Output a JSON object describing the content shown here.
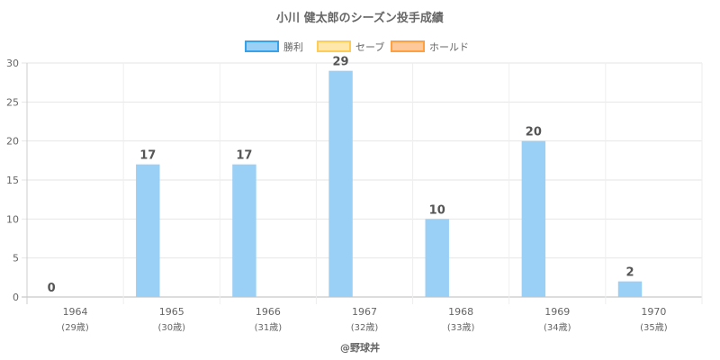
{
  "chart_data": {
    "type": "bar",
    "title": "小川 健太郎のシーズン投手成績",
    "categories": [
      "1964",
      "1965",
      "1966",
      "1967",
      "1968",
      "1969",
      "1970"
    ],
    "category_sublabels": [
      "(29歳)",
      "(30歳)",
      "(31歳)",
      "(32歳)",
      "(33歳)",
      "(34歳)",
      "(35歳)"
    ],
    "series": [
      {
        "name": "勝利",
        "values": [
          0,
          17,
          17,
          29,
          10,
          20,
          2
        ],
        "color": "#9ad0f5",
        "border": "#36a2eb"
      },
      {
        "name": "セーブ",
        "values": [
          0,
          0,
          0,
          0,
          0,
          0,
          0
        ],
        "color": "#ffe6aa",
        "border": "#ffcd56"
      },
      {
        "name": "ホールド",
        "values": [
          0,
          0,
          0,
          0,
          0,
          0,
          0
        ],
        "color": "#ffc89a",
        "border": "#ff9f40"
      }
    ],
    "data_labels": [
      "0",
      "17",
      "17",
      "29",
      "10",
      "20",
      "2"
    ],
    "ylim": [
      0,
      30
    ],
    "yticks": [
      0,
      5,
      10,
      15,
      20,
      25,
      30
    ],
    "grid": true,
    "legend_position": "top-center"
  },
  "credit": "@野球丼"
}
